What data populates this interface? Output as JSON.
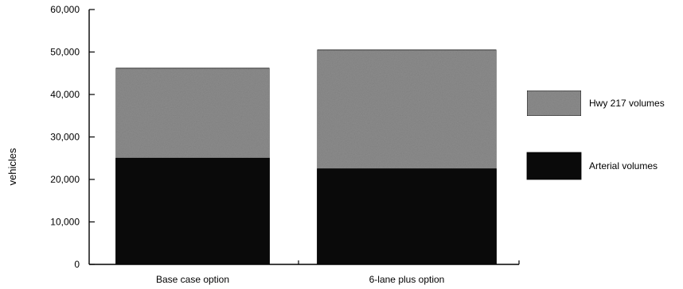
{
  "chart_data": {
    "type": "bar",
    "stacked": true,
    "categories": [
      "Base case option",
      "6-lane plus option"
    ],
    "series": [
      {
        "name": "Arterial volumes",
        "values": [
          25000,
          22500
        ],
        "color": "#0a0a0a"
      },
      {
        "name": "Hwy 217 volumes",
        "values": [
          21200,
          28000
        ],
        "color": "#8c8c8c"
      }
    ],
    "ylabel": "vehicles",
    "xlabel": "",
    "ylim": [
      0,
      60000
    ],
    "yticks": [
      "0",
      "10,000",
      "20,000",
      "30,000",
      "40,000",
      "50,000",
      "60,000"
    ],
    "legend": {
      "placement": "right",
      "order": [
        "Hwy 217 volumes",
        "Arterial volumes"
      ]
    },
    "grid": false
  }
}
